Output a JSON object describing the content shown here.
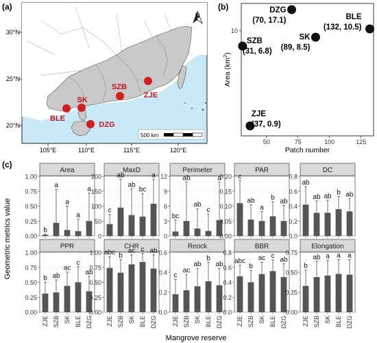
{
  "panels": {
    "a_label": "(a)",
    "b_label": "(b)",
    "c_label": "(c)"
  },
  "map": {
    "lat_labels": [
      "30°N",
      "25°N",
      "20°N"
    ],
    "lon_labels": [
      "105°E",
      "110°E",
      "115°E",
      "120°E"
    ],
    "scale_label": "500 km",
    "north_label": "N",
    "sites": [
      {
        "name": "SZB"
      },
      {
        "name": "SK"
      },
      {
        "name": "ZJE"
      },
      {
        "name": "BLE"
      },
      {
        "name": "DZG"
      }
    ],
    "colors": {
      "ocean": "#c8e9f5",
      "land": "#c9c9c9",
      "site": "#d11f1f",
      "label": "#c0141c"
    }
  },
  "chart_data": [
    {
      "type": "scatter",
      "xlabel": "Patch number",
      "ylabel": "Area (km²)",
      "ylabel_main": "Area (km",
      "ylabel_sup": "2",
      "ylabel_end": ")",
      "xlim": [
        30,
        135
      ],
      "ylim": [
        0.7,
        20
      ],
      "y_scale": "log",
      "xticks": [
        50,
        75,
        100,
        125
      ],
      "yticks": [
        10
      ],
      "points": [
        {
          "name": "DZG",
          "x": 70,
          "y": 17.1,
          "coords": "(70, 17.1)",
          "label_pos": "left"
        },
        {
          "name": "BLE",
          "x": 132,
          "y": 10.5,
          "coords": "(132, 10.5)",
          "label_pos": "left"
        },
        {
          "name": "SK",
          "x": 89,
          "y": 8.5,
          "coords": "(89, 8.5)",
          "label_pos": "left"
        },
        {
          "name": "SZB",
          "x": 31,
          "y": 6.8,
          "coords": "(31, 6.8)",
          "label_pos": "right"
        },
        {
          "name": "ZJE",
          "x": 37,
          "y": 0.9,
          "coords": "(37, 0.9)",
          "label_pos": "right"
        }
      ]
    },
    {
      "type": "bar",
      "categories": [
        "ZJE",
        "SZB",
        "SK",
        "BLE",
        "DZG"
      ],
      "xlabel": "Mangrove reserve",
      "ylabel": "Geometric metrics value",
      "bar_color": "#555555",
      "panels": [
        {
          "title": "Area",
          "ylim": [
            0,
            1.0
          ],
          "yticks": [
            "0.00",
            "0.25",
            "0.50",
            "0.75",
            "1.00"
          ],
          "tickvals": [
            0,
            0.25,
            0.5,
            0.75,
            1.0
          ],
          "values": [
            0.02,
            0.22,
            0.1,
            0.08,
            0.25
          ],
          "errors": [
            0.03,
            0.78,
            0.5,
            0.28,
            0.72
          ],
          "letters": [
            "b",
            "a",
            "a",
            "a",
            "a"
          ]
        },
        {
          "title": "MaxD",
          "ylim": [
            0,
            200
          ],
          "yticks": [
            "0",
            "50",
            "100",
            "150",
            "200"
          ],
          "tickvals": [
            0,
            50,
            100,
            150,
            200
          ],
          "values": [
            40,
            95,
            70,
            65,
            108
          ],
          "errors": [
            72,
            190,
            158,
            142,
            190
          ],
          "letters": [
            "c",
            "ab",
            "ab",
            "bc",
            "a"
          ]
        },
        {
          "title": "Perimeter",
          "ylim": [
            0,
            12
          ],
          "yticks": [
            "0",
            "3",
            "6",
            "9",
            "12"
          ],
          "tickvals": [
            0,
            3,
            6,
            9,
            12
          ],
          "values": [
            0.9,
            3.0,
            1.5,
            1.0,
            3.2
          ],
          "errors": [
            3.2,
            10.8,
            5.5,
            4.4,
            10.8
          ],
          "letters": [
            "bc",
            "ab",
            "ab",
            "c",
            "a"
          ]
        },
        {
          "title": "PAR",
          "ylim": [
            0,
            0.2
          ],
          "yticks": [
            "0.00",
            "0.05",
            "0.10",
            "0.15",
            "0.20"
          ],
          "tickvals": [
            0,
            0.05,
            0.1,
            0.15,
            0.2
          ],
          "values": [
            0.11,
            0.055,
            0.05,
            0.066,
            0.05
          ],
          "errors": [
            0.185,
            0.105,
            0.082,
            0.115,
            0.102
          ],
          "letters": [
            "c",
            "ab",
            "a",
            "b",
            "ab"
          ]
        },
        {
          "title": "DC",
          "ylim": [
            0,
            0.8
          ],
          "yticks": [
            "0.0",
            "0.2",
            "0.4",
            "0.6",
            "0.8"
          ],
          "tickvals": [
            0,
            0.2,
            0.4,
            0.6,
            0.8
          ],
          "values": [
            0.42,
            0.31,
            0.31,
            0.36,
            0.33
          ],
          "errors": [
            0.66,
            0.47,
            0.48,
            0.53,
            0.5
          ],
          "letters": [
            "ab",
            "ab",
            "ab",
            "b",
            "ab"
          ]
        },
        {
          "title": "PPR",
          "ylim": [
            0,
            1.0
          ],
          "yticks": [
            "0.00",
            "0.25",
            "0.50",
            "0.75",
            "1.00"
          ],
          "tickvals": [
            0,
            0.25,
            0.5,
            0.75,
            1.0
          ],
          "values": [
            0.31,
            0.33,
            0.44,
            0.5,
            0.35
          ],
          "errors": [
            0.5,
            0.54,
            0.67,
            0.76,
            0.6
          ],
          "letters": [
            "b",
            "ab",
            "ac",
            "c",
            "ab"
          ]
        },
        {
          "title": "CHR",
          "ylim": [
            0,
            1.0
          ],
          "yticks": [
            "0.00",
            "0.25",
            "0.50",
            "0.75",
            "1.00"
          ],
          "tickvals": [
            0,
            0.25,
            0.5,
            0.75,
            1.0
          ],
          "values": [
            0.74,
            0.66,
            0.8,
            0.84,
            0.73
          ],
          "errors": [
            0.93,
            0.88,
            0.96,
            0.98,
            0.96
          ],
          "letters": [
            "abc",
            "b",
            "ac",
            "c",
            "ab"
          ]
        },
        {
          "title": "Reock",
          "ylim": [
            0,
            0.6
          ],
          "yticks": [
            "0.0",
            "0.2",
            "0.4",
            "0.6"
          ],
          "tickvals": [
            0,
            0.2,
            0.4,
            0.6
          ],
          "values": [
            0.18,
            0.22,
            0.26,
            0.31,
            0.27
          ],
          "errors": [
            0.33,
            0.38,
            0.44,
            0.5,
            0.44
          ],
          "letters": [
            "c",
            "ac",
            "ab",
            "b",
            "ab"
          ]
        },
        {
          "title": "BBR",
          "ylim": [
            0,
            0.8
          ],
          "yticks": [
            "0.0",
            "0.2",
            "0.4",
            "0.6",
            "0.8"
          ],
          "tickvals": [
            0,
            0.2,
            0.4,
            0.6,
            0.8
          ],
          "values": [
            0.48,
            0.4,
            0.51,
            0.55,
            0.47
          ],
          "errors": [
            0.63,
            0.56,
            0.67,
            0.7,
            0.65
          ],
          "letters": [
            "abc",
            "b",
            "ac",
            "c",
            "ab"
          ]
        },
        {
          "title": "Elongation",
          "ylim": [
            0,
            0.75
          ],
          "yticks": [
            "0.00",
            "0.25",
            "0.50",
            "0.75"
          ],
          "tickvals": [
            0,
            0.25,
            0.5,
            0.75
          ],
          "values": [
            0.33,
            0.44,
            0.46,
            0.48,
            0.47
          ],
          "errors": [
            0.53,
            0.64,
            0.65,
            0.66,
            0.66
          ],
          "letters": [
            "b",
            "ab",
            "a",
            "a",
            "a"
          ]
        }
      ]
    }
  ]
}
